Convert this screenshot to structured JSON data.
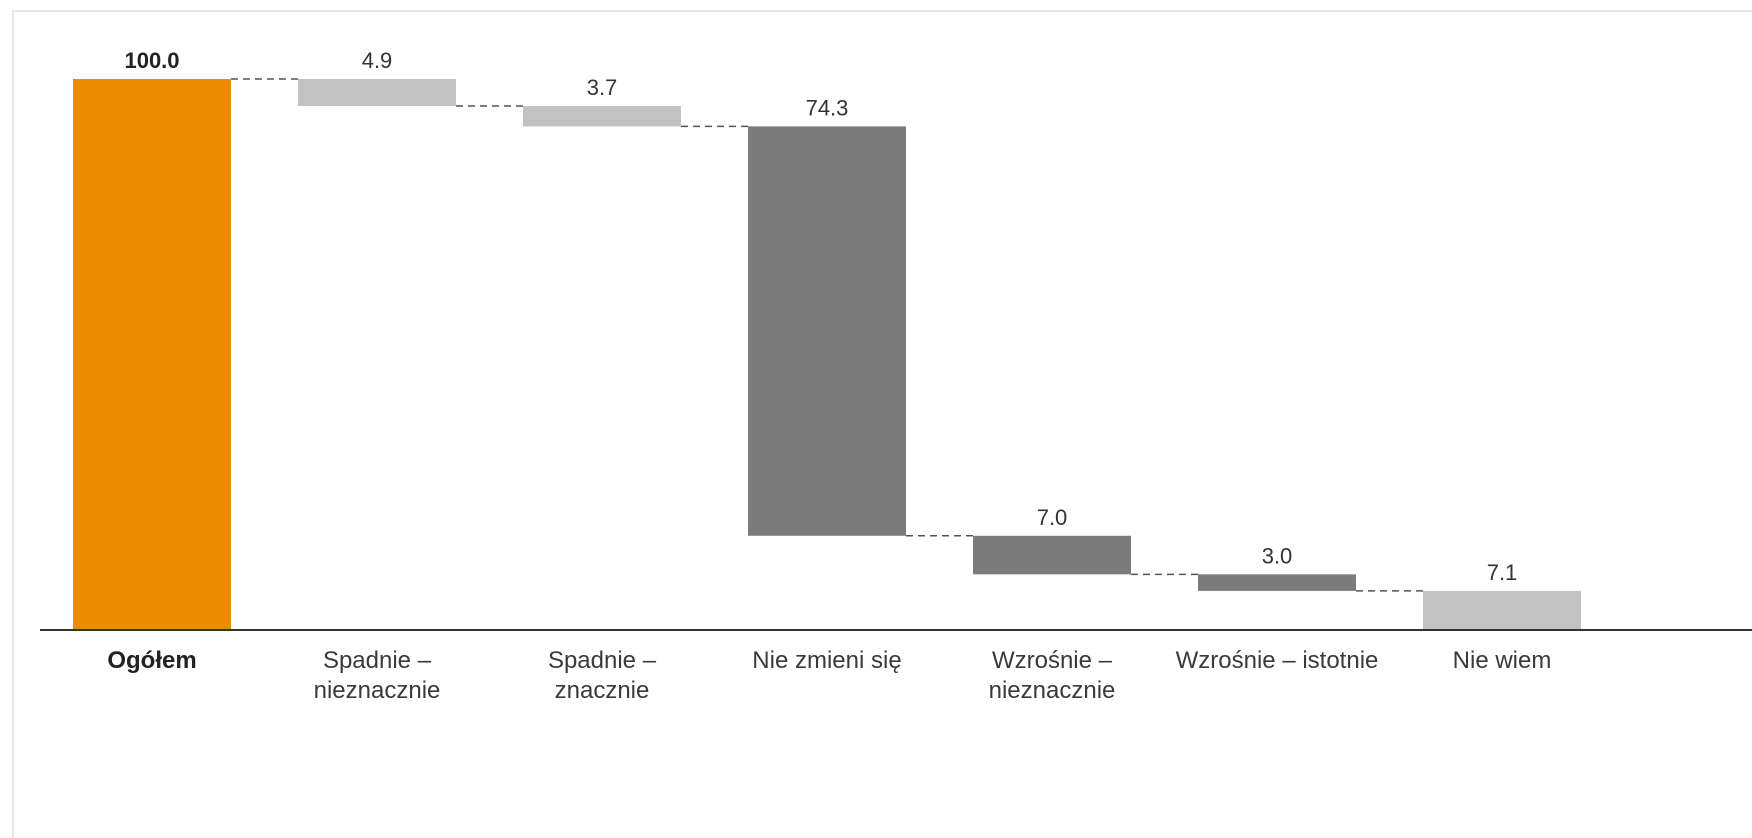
{
  "chart_data": {
    "type": "bar",
    "subtype": "waterfall",
    "categories": [
      "Ogółem",
      "Spadnie – nieznacznie",
      "Spadnie – znacznie",
      "Nie zmieni się",
      "Wzrośnie – nieznacznie",
      "Wzrośnie – istotnie",
      "Nie wiem"
    ],
    "category_lines": [
      [
        "Ogółem"
      ],
      [
        "Spadnie –",
        "nieznacznie"
      ],
      [
        "Spadnie –",
        "znacznie"
      ],
      [
        "Nie zmieni się"
      ],
      [
        "Wzrośnie –",
        "nieznacznie"
      ],
      [
        "Wzrośnie – istotnie"
      ],
      [
        "Nie wiem"
      ]
    ],
    "values": [
      100.0,
      4.9,
      3.7,
      74.3,
      7.0,
      3.0,
      7.1
    ],
    "value_labels": [
      "100.0",
      "4.9",
      "3.7",
      "74.3",
      "7.0",
      "3.0",
      "7.1"
    ],
    "bar_colors": [
      "#ec8c00",
      "#c2c2c2",
      "#c2c2c2",
      "#7b7b7b",
      "#7b7b7b",
      "#7b7b7b",
      "#c2c2c2"
    ],
    "bold_categories": [
      0
    ],
    "ylim": [
      0,
      100
    ],
    "grid": false,
    "legend": "none",
    "connector_style": "dashed",
    "title": "",
    "xlabel": "",
    "ylabel": ""
  }
}
